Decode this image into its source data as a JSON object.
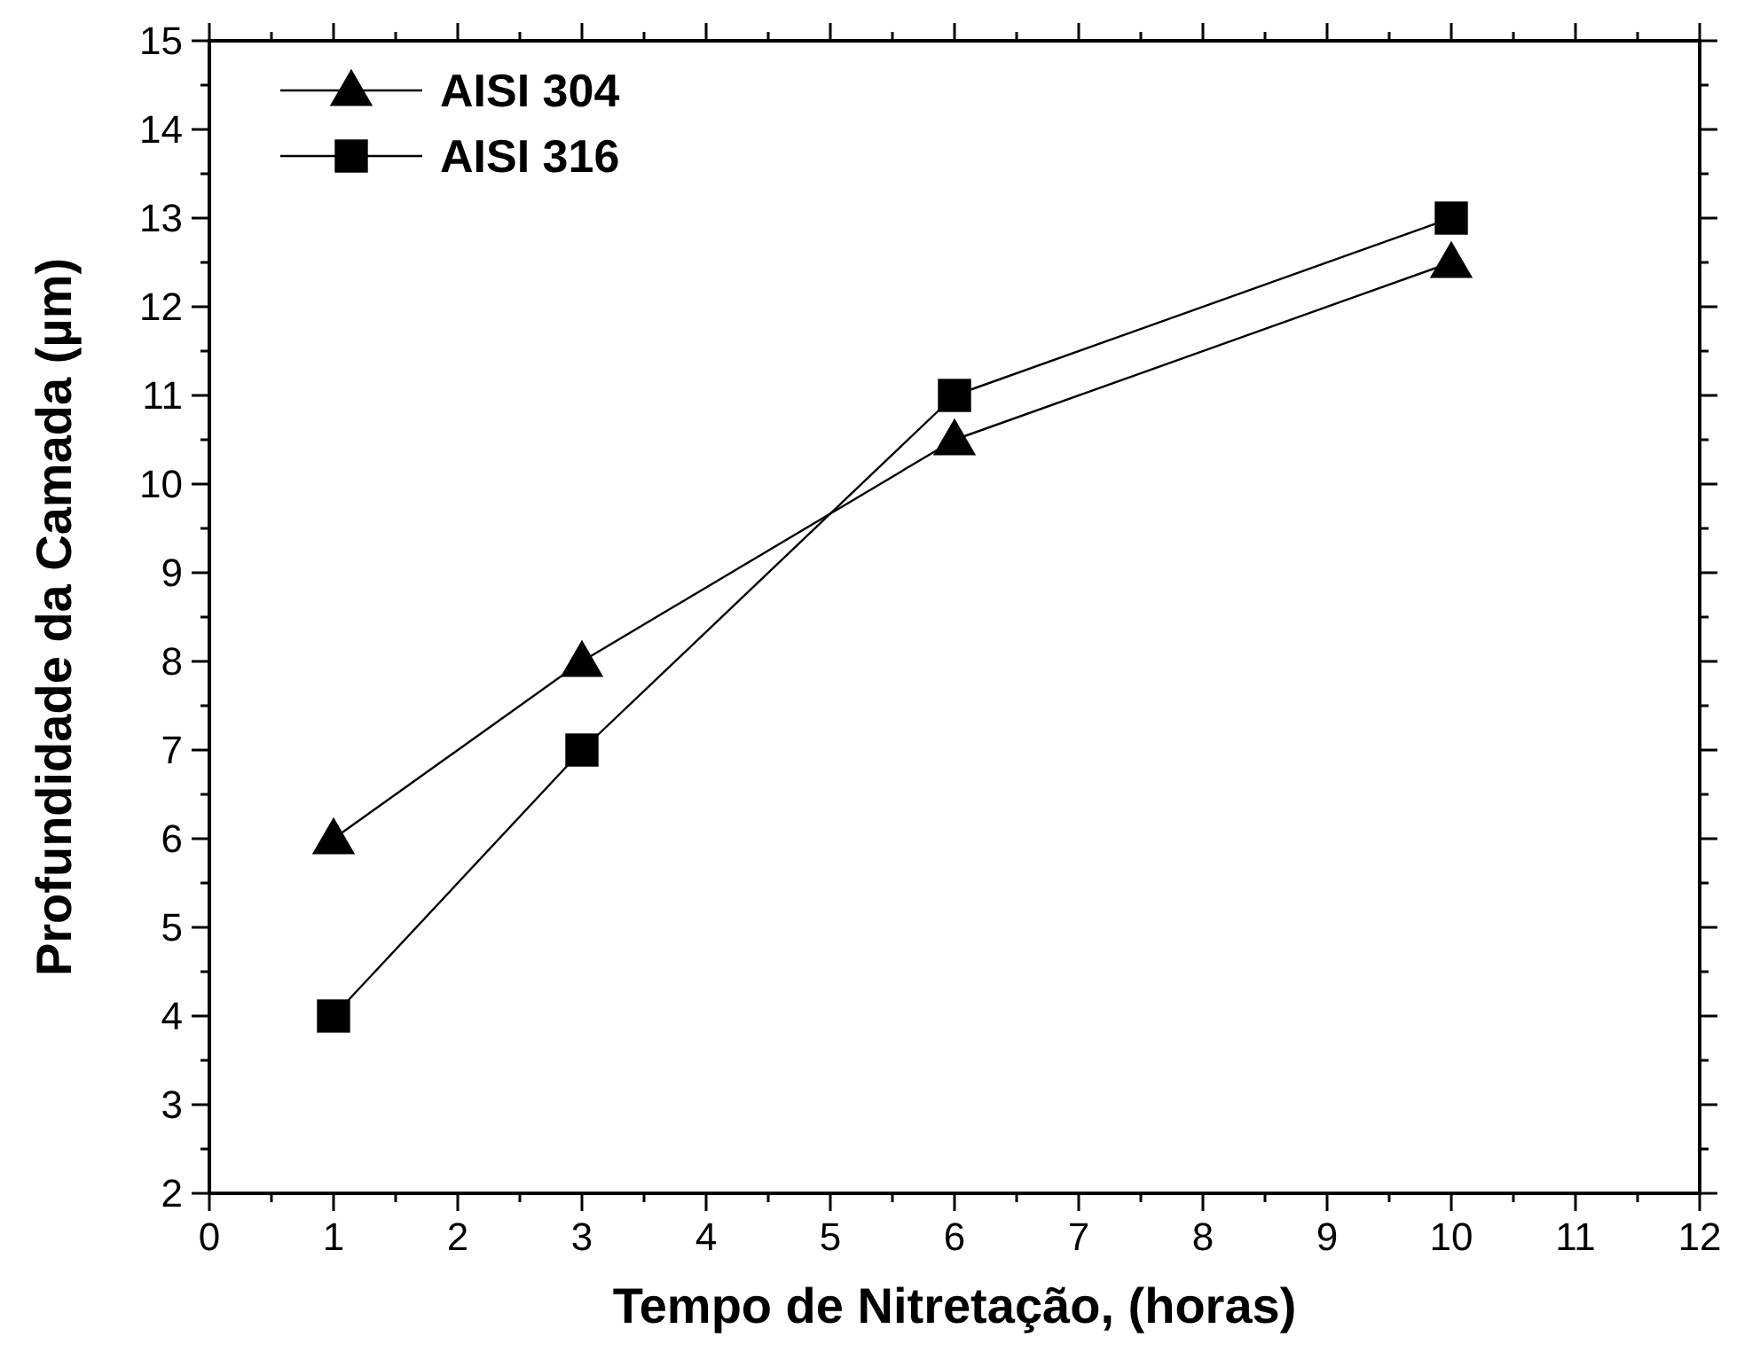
{
  "chart_data": {
    "type": "line",
    "xlabel": "Tempo de Nitretação, (horas)",
    "ylabel": "Profundidade da Camada (µm)",
    "x": [
      1,
      3,
      6,
      10
    ],
    "series": [
      {
        "name": "AISI 304",
        "color": "#000000",
        "values": [
          6,
          8,
          10.5,
          12.5
        ],
        "marker": "triangle"
      },
      {
        "name": "AISI 316",
        "color": "#000000",
        "values": [
          4,
          7,
          11,
          13
        ],
        "marker": "square"
      }
    ],
    "xlim": [
      0,
      12
    ],
    "xticks": [
      0,
      {
        "value": 0.5,
        "label": null
      },
      1,
      {
        "value": 1.5,
        "label": null
      },
      2,
      {
        "value": 2.5,
        "label": null
      },
      3,
      {
        "value": 3.5,
        "label": null
      },
      4,
      {
        "value": 4.5,
        "label": null
      },
      5,
      {
        "value": 5.5,
        "label": null
      },
      6,
      {
        "value": 6.5,
        "label": null
      },
      7,
      {
        "value": 7.5,
        "label": null
      },
      8,
      {
        "value": 8.5,
        "label": null
      },
      9,
      {
        "value": 9.5,
        "label": null
      },
      10,
      {
        "value": 10.5,
        "label": null
      },
      11,
      {
        "value": 11.5,
        "label": null
      },
      12
    ],
    "ylim": [
      2,
      15
    ],
    "yticks": [
      2,
      {
        "value": 2.5,
        "label": null
      },
      3,
      {
        "value": 3.5,
        "label": null
      },
      4,
      {
        "value": 4.5,
        "label": null
      },
      5,
      {
        "value": 5.5,
        "label": null
      },
      6,
      {
        "value": 6.5,
        "label": null
      },
      7,
      {
        "value": 7.5,
        "label": null
      },
      8,
      {
        "value": 8.5,
        "label": null
      },
      9,
      {
        "value": 9.5,
        "label": null
      },
      10,
      {
        "value": 10.5,
        "label": null
      },
      11,
      {
        "value": 11.5,
        "label": null
      },
      12,
      {
        "value": 12.5,
        "label": null
      },
      13,
      {
        "value": 13.5,
        "label": null
      },
      14,
      {
        "value": 14.5,
        "label": null
      },
      15
    ],
    "grid": false,
    "legend": "top left",
    "line_style": "solid"
  }
}
